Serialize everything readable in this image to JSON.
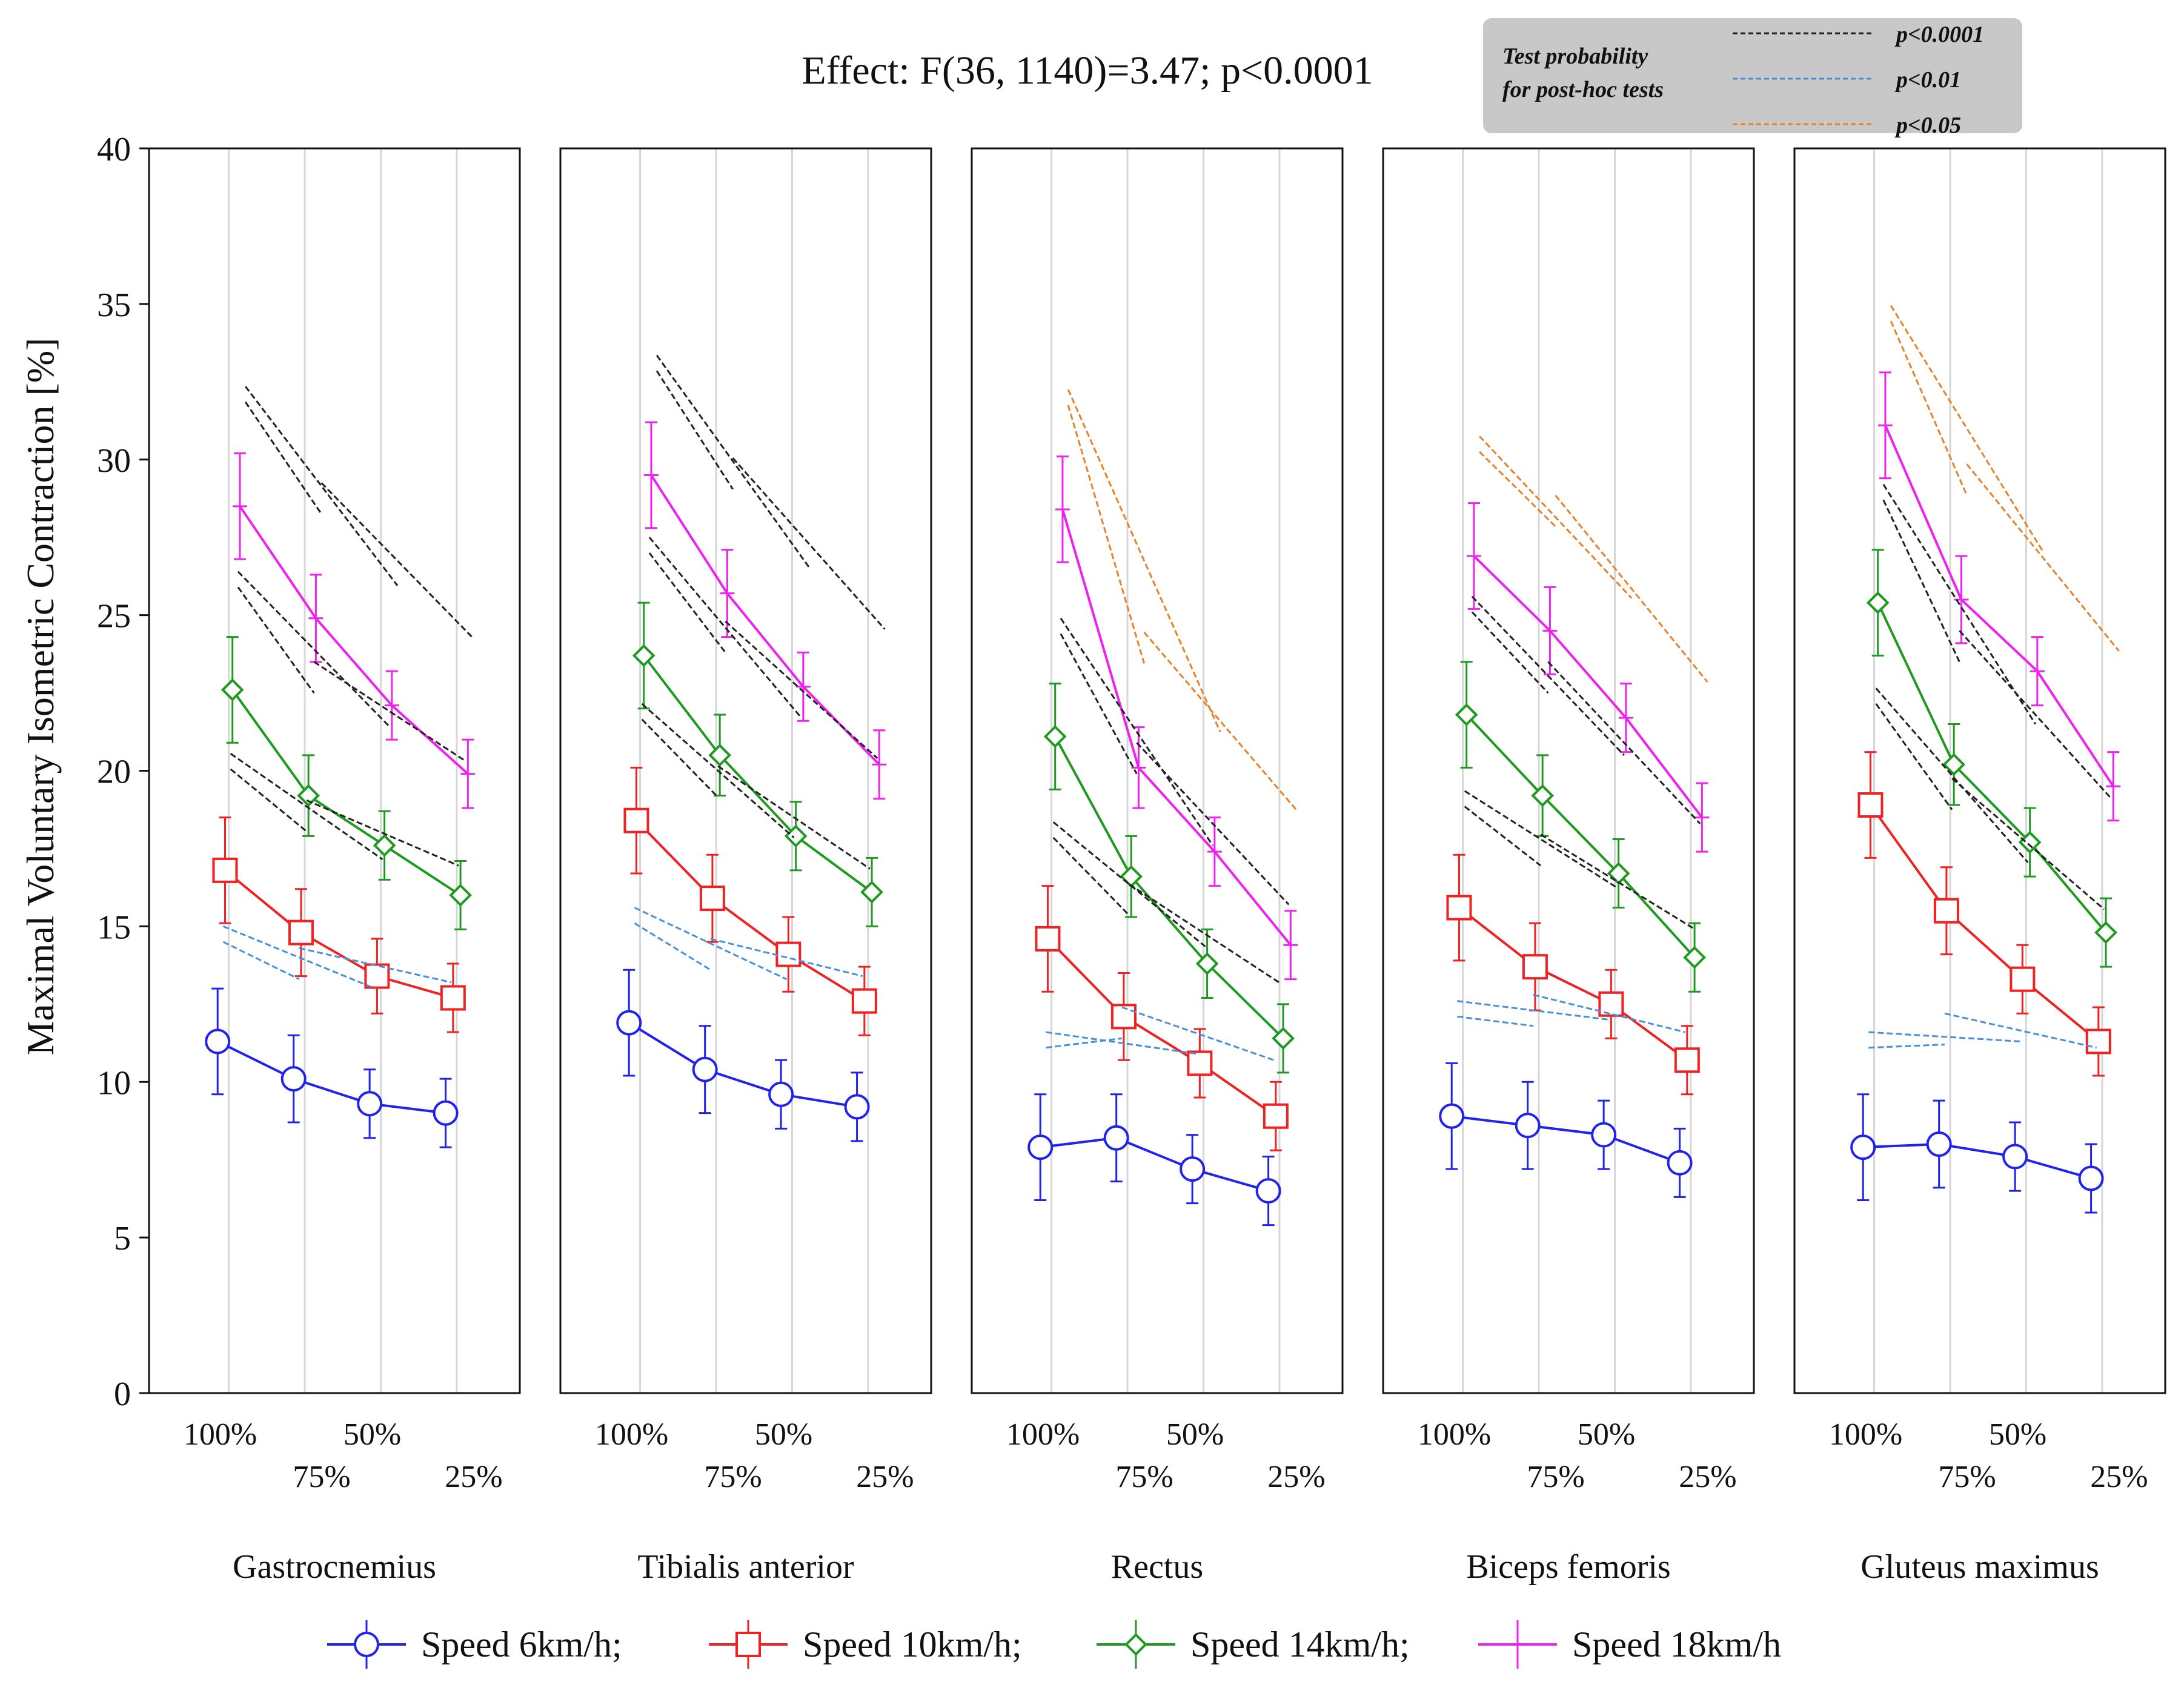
{
  "chart_data": {
    "type": "line",
    "title": "Effect: F(36, 1140)=3.47; p<0.0001",
    "ylabel": "Maximal Voluntary Isometric Contraction [%]",
    "xlabel": "",
    "ylim": [
      0,
      40
    ],
    "yticks": [
      0,
      5,
      10,
      15,
      20,
      25,
      30,
      35,
      40
    ],
    "grid": true,
    "x_categories": [
      "100%",
      "75%",
      "50%",
      "25%"
    ],
    "panels": [
      {
        "name": "Gastrocnemius",
        "series": [
          {
            "name": "Speed 6km/h;",
            "values": [
              11.3,
              10.1,
              9.3,
              9.0
            ],
            "errors": [
              1.7,
              1.4,
              1.1,
              1.1
            ]
          },
          {
            "name": "Speed 10km/h;",
            "values": [
              16.8,
              14.8,
              13.4,
              12.7
            ],
            "errors": [
              1.7,
              1.4,
              1.2,
              1.1
            ]
          },
          {
            "name": "Speed 14km/h;",
            "values": [
              22.6,
              19.2,
              17.6,
              16.0
            ],
            "errors": [
              1.7,
              1.3,
              1.1,
              1.1
            ]
          },
          {
            "name": "Speed 18km/h",
            "values": [
              28.5,
              24.9,
              22.1,
              19.9
            ],
            "errors": [
              1.7,
              1.4,
              1.1,
              1.1
            ]
          }
        ]
      },
      {
        "name": "Tibialis anterior",
        "series": [
          {
            "name": "Speed 6km/h;",
            "values": [
              11.9,
              10.4,
              9.6,
              9.2
            ],
            "errors": [
              1.7,
              1.4,
              1.1,
              1.1
            ]
          },
          {
            "name": "Speed 10km/h;",
            "values": [
              18.4,
              15.9,
              14.1,
              12.6
            ],
            "errors": [
              1.7,
              1.4,
              1.2,
              1.1
            ]
          },
          {
            "name": "Speed 14km/h;",
            "values": [
              23.7,
              20.5,
              17.9,
              16.1
            ],
            "errors": [
              1.7,
              1.3,
              1.1,
              1.1
            ]
          },
          {
            "name": "Speed 18km/h",
            "values": [
              29.5,
              25.7,
              22.7,
              20.2
            ],
            "errors": [
              1.7,
              1.4,
              1.1,
              1.1
            ]
          }
        ]
      },
      {
        "name": "Rectus",
        "series": [
          {
            "name": "Speed 6km/h;",
            "values": [
              7.9,
              8.2,
              7.2,
              6.5
            ],
            "errors": [
              1.7,
              1.4,
              1.1,
              1.1
            ]
          },
          {
            "name": "Speed 10km/h;",
            "values": [
              14.6,
              12.1,
              10.6,
              8.9
            ],
            "errors": [
              1.7,
              1.4,
              1.1,
              1.1
            ]
          },
          {
            "name": "Speed 14km/h;",
            "values": [
              21.1,
              16.6,
              13.8,
              11.4
            ],
            "errors": [
              1.7,
              1.3,
              1.1,
              1.1
            ]
          },
          {
            "name": "Speed 18km/h",
            "values": [
              28.4,
              20.1,
              17.4,
              14.4
            ],
            "errors": [
              1.7,
              1.3,
              1.1,
              1.1
            ]
          }
        ]
      },
      {
        "name": "Biceps femoris",
        "series": [
          {
            "name": "Speed 6km/h;",
            "values": [
              8.9,
              8.6,
              8.3,
              7.4
            ],
            "errors": [
              1.7,
              1.4,
              1.1,
              1.1
            ]
          },
          {
            "name": "Speed 10km/h;",
            "values": [
              15.6,
              13.7,
              12.5,
              10.7
            ],
            "errors": [
              1.7,
              1.4,
              1.1,
              1.1
            ]
          },
          {
            "name": "Speed 14km/h;",
            "values": [
              21.8,
              19.2,
              16.7,
              14.0
            ],
            "errors": [
              1.7,
              1.3,
              1.1,
              1.1
            ]
          },
          {
            "name": "Speed 18km/h",
            "values": [
              26.9,
              24.5,
              21.7,
              18.5
            ],
            "errors": [
              1.7,
              1.4,
              1.1,
              1.1
            ]
          }
        ]
      },
      {
        "name": "Gluteus maximus",
        "series": [
          {
            "name": "Speed 6km/h;",
            "values": [
              7.9,
              8.0,
              7.6,
              6.9
            ],
            "errors": [
              1.7,
              1.4,
              1.1,
              1.1
            ]
          },
          {
            "name": "Speed 10km/h;",
            "values": [
              18.9,
              15.5,
              13.3,
              11.3
            ],
            "errors": [
              1.7,
              1.4,
              1.1,
              1.1
            ]
          },
          {
            "name": "Speed 14km/h;",
            "values": [
              25.4,
              20.2,
              17.7,
              14.8
            ],
            "errors": [
              1.7,
              1.3,
              1.1,
              1.1
            ]
          },
          {
            "name": "Speed 18km/h",
            "values": [
              31.1,
              25.5,
              23.2,
              19.5
            ],
            "errors": [
              1.7,
              1.4,
              1.1,
              1.1
            ]
          }
        ]
      }
    ],
    "legend": {
      "placement": "bottom",
      "items": [
        {
          "label": "Speed 6km/h;",
          "color": "#2222ee",
          "marker": "circle"
        },
        {
          "label": "Speed 10km/h;",
          "color": "#ee2222",
          "marker": "square"
        },
        {
          "label": "Speed 14km/h;",
          "color": "#1e9a1e",
          "marker": "diamond"
        },
        {
          "label": "Speed 18km/h",
          "color": "#ee22ee",
          "marker": "plus"
        }
      ]
    },
    "significance_legend": {
      "placement": "top-right",
      "title_line1": "Test probability",
      "title_line2": "for post-hoc tests",
      "items": [
        {
          "label": "p<0.0001",
          "color": "#222222"
        },
        {
          "label": "p<0.01",
          "color": "#4a90d9"
        },
        {
          "label": "p<0.05",
          "color": "#e8822a"
        }
      ]
    }
  }
}
